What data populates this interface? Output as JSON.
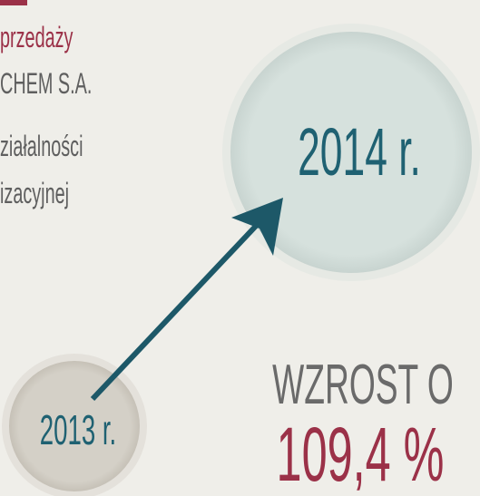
{
  "header": {
    "lines": [
      "przedaży",
      "CHEM S.A.",
      "ziałalności",
      "izacyjnej"
    ]
  },
  "comparison": {
    "from": "2013 r.",
    "to": "2014 r.",
    "label": "WZROST O",
    "value": "109,4 %"
  }
}
